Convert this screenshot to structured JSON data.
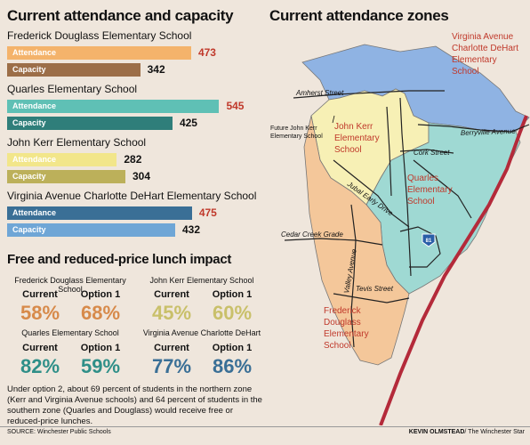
{
  "attendance_title": "Current attendance and capacity",
  "zones_title": "Current attendance zones",
  "chart_data": {
    "type": "bar",
    "title": "Current attendance and capacity",
    "series_labels": [
      "Attendance",
      "Capacity"
    ],
    "schools": [
      {
        "name": "Frederick Douglass Elementary School",
        "attendance": 473,
        "capacity": 342,
        "attendance_color": "#f4b36b",
        "capacity_color": "#9c6e48"
      },
      {
        "name": "Quarles Elementary School",
        "attendance": 545,
        "capacity": 425,
        "attendance_color": "#5fc0b5",
        "capacity_color": "#2f7e7a"
      },
      {
        "name": "John Kerr Elementary School",
        "attendance": 282,
        "capacity": 304,
        "attendance_color": "#f2e68a",
        "capacity_color": "#bcb05a"
      },
      {
        "name": "Virginia Avenue Charlotte DeHart Elementary School",
        "attendance": 475,
        "capacity": 432,
        "attendance_color": "#3a6f96",
        "capacity_color": "#6fa6d6"
      }
    ],
    "xlim": [
      0,
      560
    ],
    "over_capacity_color": "#c0392b"
  },
  "lunch": {
    "title": "Free and reduced-price lunch impact",
    "current_label": "Current",
    "option_label": "Option 1",
    "schools": [
      {
        "name": "Frederick Douglass Elementary School",
        "current": "58%",
        "option1": "68%",
        "color": "#d78a4a"
      },
      {
        "name": "John Kerr Elementary School",
        "current": "45%",
        "option1": "60%",
        "color": "#c9c06a"
      },
      {
        "name": "Quarles Elementary School",
        "current": "82%",
        "option1": "59%",
        "color": "#2f8f88"
      },
      {
        "name": "Virginia Avenue Charlotte DeHart",
        "current": "77%",
        "option1": "86%",
        "color": "#3a6f96"
      }
    ],
    "note": "Under option 2, about 69 percent of students in the northern zone (Kerr and Virginia Avenue schools) and 64 percent of students in the southern zone (Quarles and Douglass) would receive free or reduced-price lunches."
  },
  "map": {
    "zone_colors": {
      "virginia": "#8fb3e3",
      "kerr": "#f7f0b5",
      "quarles": "#9fd9d3",
      "douglass": "#f4c79a"
    },
    "zone_labels": {
      "virginia": [
        "Virginia Avenue",
        "Charlotte DeHart",
        "Elementary",
        "School"
      ],
      "kerr": [
        "John Kerr",
        "Elementary",
        "School"
      ],
      "quarles": [
        "Quarles",
        "Elementary",
        "School"
      ],
      "douglass": [
        "Frederick",
        "Douglass",
        "Elementary",
        "School"
      ]
    },
    "future_kerr": [
      "Future John Kerr",
      "Elementary School"
    ],
    "streets": {
      "amherst": "Amherst Street",
      "berryville": "Berryville Avenue",
      "cork": "Cork Street",
      "jubal": "Jubal Early Drive",
      "cedar": "Cedar Creek Grade",
      "valley": "Valley Avenue",
      "tevis": "Tevis Street"
    },
    "interstate": "81"
  },
  "footer": {
    "source": "SOURCE: Winchester Public Schools",
    "credit_name": "KEVIN OLMSTEAD",
    "credit_org": "/ The Winchester Star"
  }
}
